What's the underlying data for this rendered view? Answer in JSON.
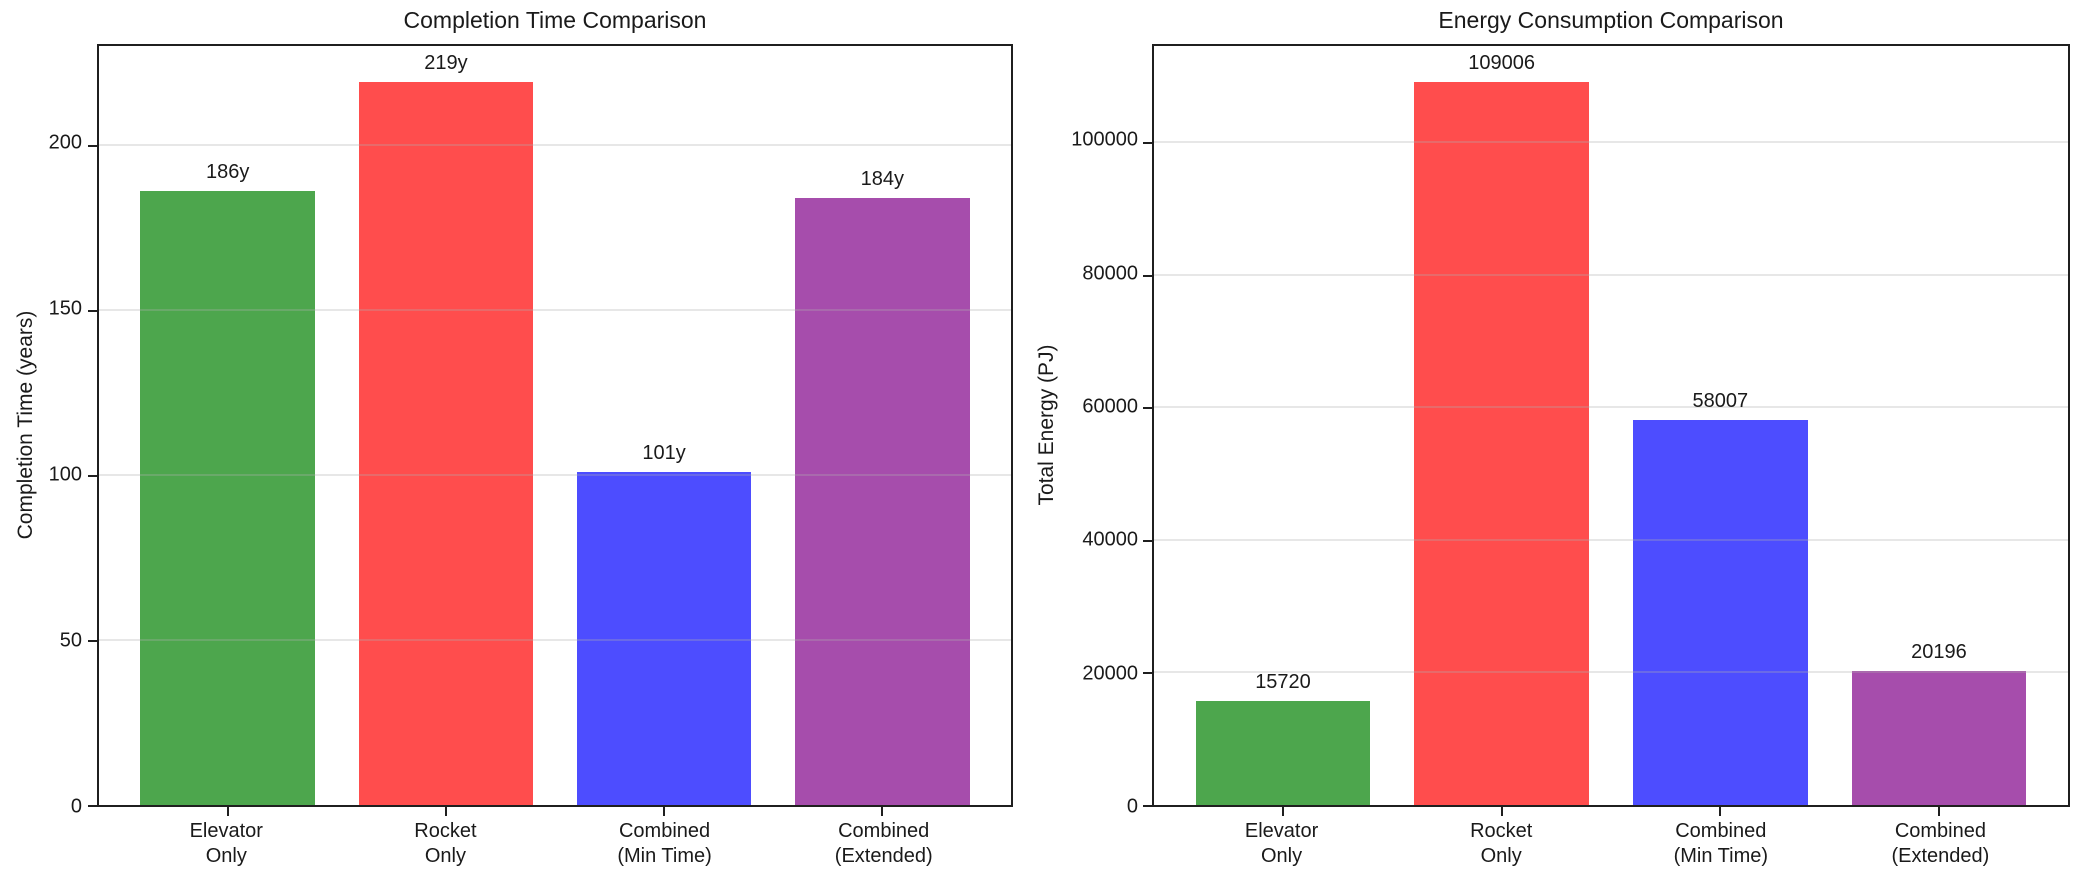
{
  "figure": {
    "background": "#ffffff",
    "axis_color": "#1f1f1f",
    "grid_color": "#ececec",
    "text_color": "#1a1a1a"
  },
  "chart_data": [
    {
      "type": "bar",
      "title": "Completion Time Comparison",
      "ylabel": "Completion Time (years)",
      "xlabel": "",
      "categories": [
        "Elevator\nOnly",
        "Rocket\nOnly",
        "Combined\n(Min Time)",
        "Combined\n(Extended)"
      ],
      "values": [
        186,
        219,
        101,
        184
      ],
      "bar_labels": [
        "186y",
        "219y",
        "101y",
        "184y"
      ],
      "bar_colors": [
        "#4DA64D",
        "#FF4D4D",
        "#4D4DFF",
        "#A64DAC"
      ],
      "yticks": [
        0,
        50,
        100,
        150,
        200
      ],
      "ylim": [
        0,
        229.95
      ],
      "grid": "horizontal-y",
      "legend": "none"
    },
    {
      "type": "bar",
      "title": "Energy Consumption Comparison",
      "ylabel": "Total Energy (PJ)",
      "xlabel": "",
      "categories": [
        "Elevator\nOnly",
        "Rocket\nOnly",
        "Combined\n(Min Time)",
        "Combined\n(Extended)"
      ],
      "values": [
        15720,
        109006,
        58007,
        20196
      ],
      "bar_labels": [
        "15720",
        "109006",
        "58007",
        "20196"
      ],
      "bar_colors": [
        "#4DA64D",
        "#FF4D4D",
        "#4D4DFF",
        "#A64DAC"
      ],
      "yticks": [
        0,
        20000,
        40000,
        60000,
        80000,
        100000
      ],
      "ylim": [
        0,
        114456
      ],
      "grid": "horizontal-y",
      "legend": "none"
    }
  ]
}
